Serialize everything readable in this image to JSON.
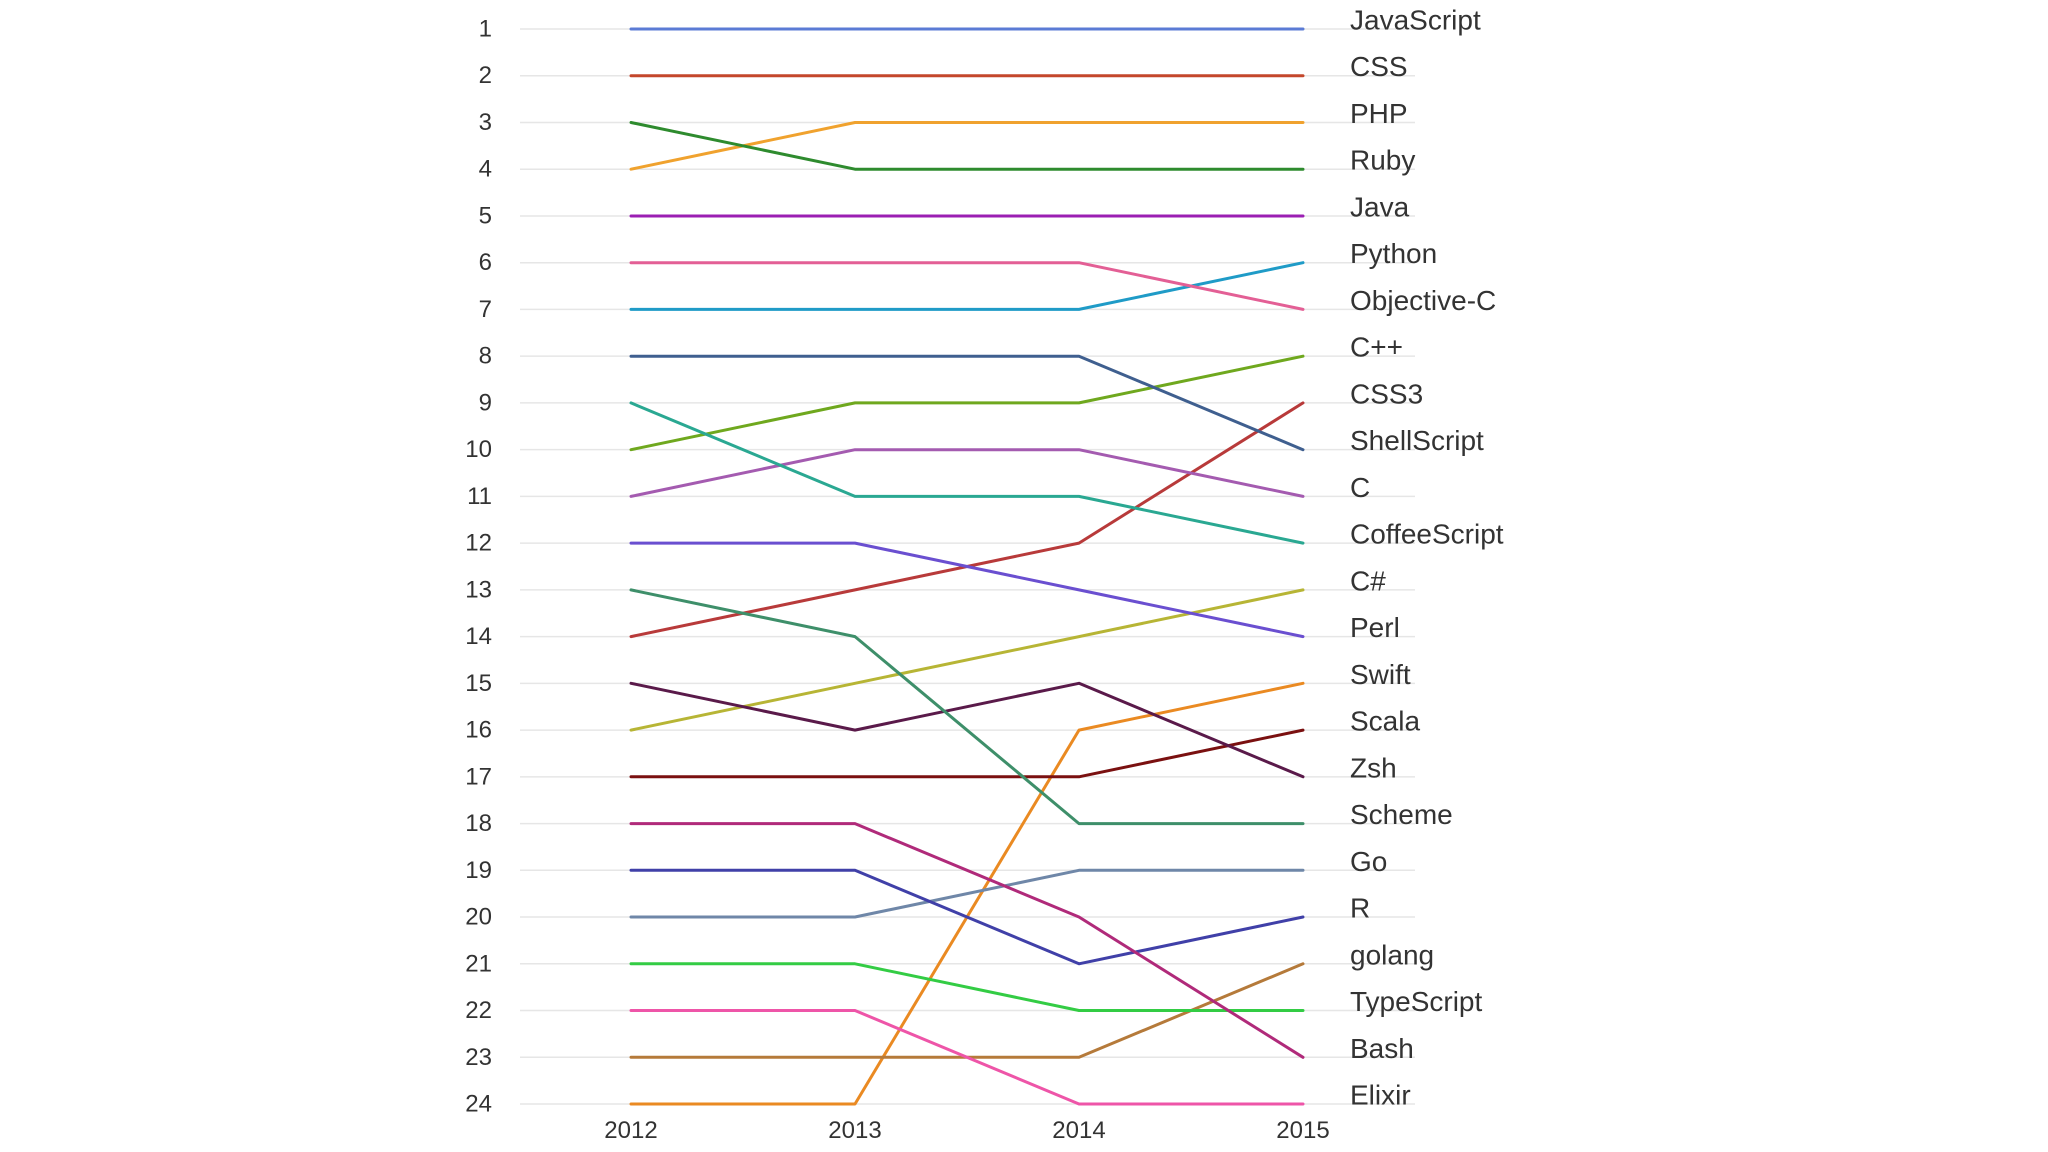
{
  "chart_data": {
    "type": "line",
    "title": "",
    "xlabel": "",
    "ylabel": "",
    "x": [
      "2012",
      "2013",
      "2014",
      "2015"
    ],
    "y_ticks": [
      "1",
      "2",
      "3",
      "4",
      "5",
      "6",
      "7",
      "8",
      "9",
      "10",
      "11",
      "12",
      "13",
      "14",
      "15",
      "16",
      "17",
      "18",
      "19",
      "20",
      "21",
      "22",
      "23",
      "24"
    ],
    "ylim": [
      1,
      24
    ],
    "y_inverted": true,
    "grid": true,
    "legend": "right-end labels",
    "series": [
      {
        "name": "JavaScript",
        "values": [
          1,
          1,
          1,
          1
        ],
        "color": "#5b7bd5"
      },
      {
        "name": "CSS",
        "values": [
          2,
          2,
          2,
          2
        ],
        "color": "#c4472b"
      },
      {
        "name": "PHP",
        "values": [
          4,
          3,
          3,
          3
        ],
        "color": "#f0a22e"
      },
      {
        "name": "Ruby",
        "values": [
          3,
          4,
          4,
          4
        ],
        "color": "#2e8b2e"
      },
      {
        "name": "Java",
        "values": [
          5,
          5,
          5,
          5
        ],
        "color": "#9b1fb3"
      },
      {
        "name": "Python",
        "values": [
          7,
          7,
          7,
          6
        ],
        "color": "#1f9bc7"
      },
      {
        "name": "Objective-C",
        "values": [
          6,
          6,
          6,
          7
        ],
        "color": "#e35f95"
      },
      {
        "name": "C++",
        "values": [
          10,
          9,
          9,
          8
        ],
        "color": "#6fa81e"
      },
      {
        "name": "CSS3",
        "values": [
          14,
          13,
          12,
          9
        ],
        "color": "#b83a3a"
      },
      {
        "name": "ShellScript",
        "values": [
          8,
          8,
          8,
          10
        ],
        "color": "#3f5f8f"
      },
      {
        "name": "C",
        "values": [
          11,
          10,
          10,
          11
        ],
        "color": "#a45bb0"
      },
      {
        "name": "CoffeeScript",
        "values": [
          9,
          11,
          11,
          12
        ],
        "color": "#2aa892"
      },
      {
        "name": "C#",
        "values": [
          16,
          15,
          14,
          13
        ],
        "color": "#b7b535"
      },
      {
        "name": "Perl",
        "values": [
          12,
          12,
          13,
          14
        ],
        "color": "#6a4fd0"
      },
      {
        "name": "Swift",
        "values": [
          24,
          24,
          16,
          15
        ],
        "color": "#ea8a22"
      },
      {
        "name": "Scala",
        "values": [
          17,
          17,
          17,
          16
        ],
        "color": "#7a1010"
      },
      {
        "name": "Zsh",
        "values": [
          15,
          16,
          15,
          17
        ],
        "color": "#5a1a4a"
      },
      {
        "name": "Scheme",
        "values": [
          13,
          14,
          18,
          18
        ],
        "color": "#3e8f6a"
      },
      {
        "name": "Go",
        "values": [
          20,
          20,
          19,
          19
        ],
        "color": "#6f87a8"
      },
      {
        "name": "R",
        "values": [
          19,
          19,
          21,
          20
        ],
        "color": "#4040a8"
      },
      {
        "name": "golang",
        "values": [
          23,
          23,
          23,
          21
        ],
        "color": "#b57a3a"
      },
      {
        "name": "TypeScript",
        "values": [
          21,
          21,
          22,
          22
        ],
        "color": "#33cc44"
      },
      {
        "name": "Bash",
        "values": [
          18,
          18,
          20,
          23
        ],
        "color": "#b02a7a"
      },
      {
        "name": "Elixir",
        "values": [
          22,
          22,
          24,
          24
        ],
        "color": "#ee55a8"
      }
    ]
  }
}
